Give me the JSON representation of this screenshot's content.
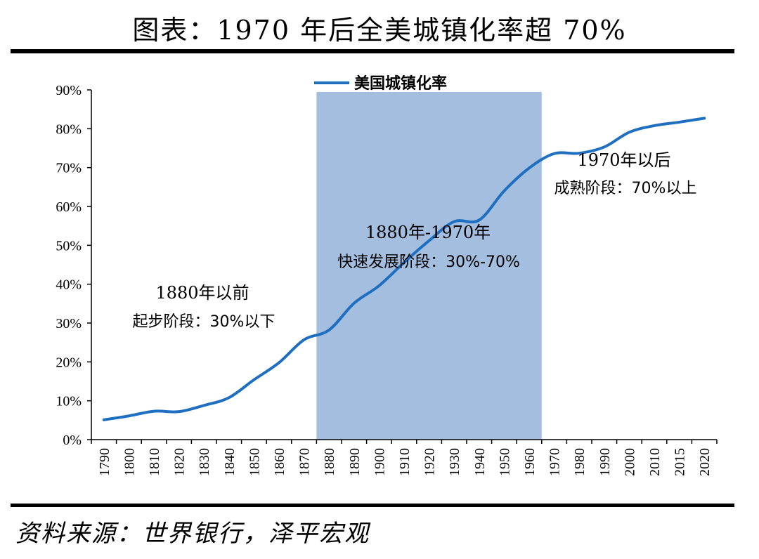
{
  "title": "图表：1970 年后全美城镇化率超 70%",
  "source": "资料来源：世界银行，泽平宏观",
  "colors": {
    "line": "#1f6fc1",
    "highlight": "#a4bedf",
    "axis": "#000000"
  },
  "chart_data": {
    "type": "line",
    "title": "图表：1970 年后全美城镇化率超 70%",
    "categories": [
      "1790",
      "1800",
      "1810",
      "1820",
      "1830",
      "1840",
      "1850",
      "1860",
      "1870",
      "1880",
      "1890",
      "1900",
      "1910",
      "1920",
      "1930",
      "1940",
      "1950",
      "1960",
      "1970",
      "1980",
      "1990",
      "2000",
      "2010",
      "2015",
      "2020"
    ],
    "series": [
      {
        "name": "美国城镇化率",
        "values": [
          5.1,
          6.1,
          7.3,
          7.2,
          8.8,
          10.8,
          15.4,
          19.8,
          25.7,
          28.2,
          35.1,
          39.6,
          45.6,
          51.2,
          56.1,
          56.5,
          64.0,
          69.9,
          73.6,
          73.7,
          75.3,
          79.1,
          80.8,
          81.7,
          82.7
        ]
      }
    ],
    "ylim": [
      0,
      90
    ],
    "yticks": [
      0,
      10,
      20,
      30,
      40,
      50,
      60,
      70,
      80,
      90
    ],
    "ytick_labels": [
      "0%",
      "10%",
      "20%",
      "30%",
      "40%",
      "50%",
      "60%",
      "70%",
      "80%",
      "90%"
    ],
    "legend": "top-center",
    "highlight_range": {
      "from": "1880",
      "to": "1960"
    },
    "annotations": [
      {
        "id": "phase1",
        "lines": [
          "1880年以前",
          "起步阶段：30%以下"
        ]
      },
      {
        "id": "phase2",
        "lines": [
          "1880年-1970年",
          "快速发展阶段：30%-70%"
        ]
      },
      {
        "id": "phase3",
        "lines": [
          "1970年以后",
          "成熟阶段：70%以上"
        ]
      }
    ]
  }
}
